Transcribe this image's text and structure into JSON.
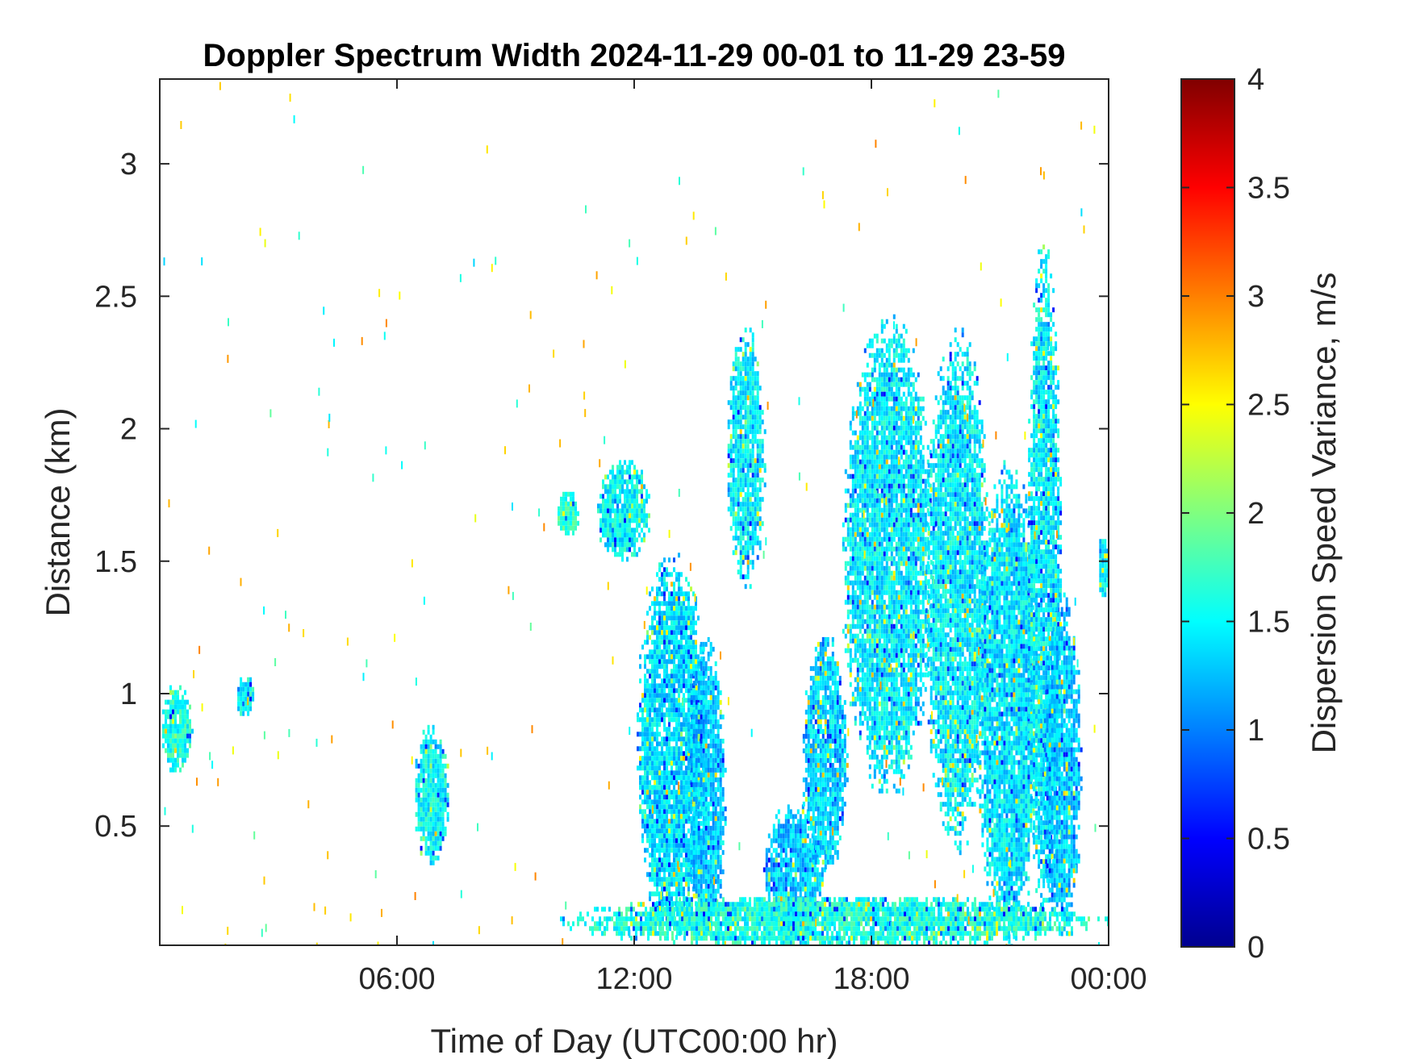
{
  "chart_data": {
    "type": "heatmap",
    "title": "Doppler Spectrum Width 2024-11-29 00-01 to 11-29 23-59",
    "xlabel": "Time of Day (UTC00:00 hr)",
    "ylabel": "Distance (km)",
    "colorbar_label": "Dispersion Speed Variance, m/s",
    "x_range_hours": [
      0,
      24
    ],
    "ylim_km": [
      0.05,
      3.32
    ],
    "clim": [
      0,
      4
    ],
    "x_ticks": [
      {
        "value": 6,
        "label": "06:00"
      },
      {
        "value": 12,
        "label": "12:00"
      },
      {
        "value": 18,
        "label": "18:00"
      },
      {
        "value": 24,
        "label": "00:00"
      }
    ],
    "y_ticks": [
      {
        "value": 0.5,
        "label": "0.5"
      },
      {
        "value": 1,
        "label": "1"
      },
      {
        "value": 1.5,
        "label": "1.5"
      },
      {
        "value": 2,
        "label": "2"
      },
      {
        "value": 2.5,
        "label": "2.5"
      },
      {
        "value": 3,
        "label": "3"
      }
    ],
    "colorbar_ticks": [
      {
        "value": 0,
        "label": "0"
      },
      {
        "value": 0.5,
        "label": "0.5"
      },
      {
        "value": 1,
        "label": "1"
      },
      {
        "value": 1.5,
        "label": "1.5"
      },
      {
        "value": 2,
        "label": "2"
      },
      {
        "value": 2.5,
        "label": "2.5"
      },
      {
        "value": 3,
        "label": "3"
      },
      {
        "value": 3.5,
        "label": "3.5"
      },
      {
        "value": 4,
        "label": "4"
      }
    ],
    "colormap": "jet",
    "regions": [
      {
        "t0": 0.0,
        "t1": 0.8,
        "h0": 0.7,
        "h1": 1.05,
        "v": 1.6
      },
      {
        "t0": 1.9,
        "t1": 2.4,
        "h0": 0.92,
        "h1": 1.08,
        "v": 1.5
      },
      {
        "t0": 6.4,
        "t1": 7.3,
        "h0": 0.35,
        "h1": 0.9,
        "v": 1.5
      },
      {
        "t0": 10.0,
        "t1": 10.6,
        "h0": 1.6,
        "h1": 1.78,
        "v": 1.7
      },
      {
        "t0": 11.0,
        "t1": 12.4,
        "h0": 1.5,
        "h1": 1.9,
        "v": 1.5
      },
      {
        "t0": 12.0,
        "t1": 13.9,
        "h0": 0.05,
        "h1": 1.55,
        "v": 1.4
      },
      {
        "t0": 13.3,
        "t1": 14.3,
        "h0": 0.05,
        "h1": 1.25,
        "v": 1.3
      },
      {
        "t0": 14.3,
        "t1": 15.3,
        "h0": 1.4,
        "h1": 2.4,
        "v": 1.45
      },
      {
        "t0": 15.2,
        "t1": 16.8,
        "h0": 0.05,
        "h1": 0.6,
        "v": 1.3
      },
      {
        "t0": 16.2,
        "t1": 17.4,
        "h0": 0.3,
        "h1": 1.25,
        "v": 1.35
      },
      {
        "t0": 17.2,
        "t1": 19.6,
        "h0": 0.6,
        "h1": 2.45,
        "v": 1.45
      },
      {
        "t0": 19.3,
        "t1": 21.0,
        "h0": 0.4,
        "h1": 2.4,
        "v": 1.45
      },
      {
        "t0": 20.6,
        "t1": 22.3,
        "h0": 0.05,
        "h1": 1.9,
        "v": 1.4
      },
      {
        "t0": 21.9,
        "t1": 22.8,
        "h0": 0.1,
        "h1": 2.75,
        "v": 1.45
      },
      {
        "t0": 22.3,
        "t1": 23.3,
        "h0": 0.05,
        "h1": 1.4,
        "v": 1.3
      },
      {
        "t0": 23.7,
        "t1": 24.0,
        "h0": 1.35,
        "h1": 1.62,
        "v": 1.4
      },
      {
        "t0": 10.0,
        "t1": 24.0,
        "h0": 0.05,
        "h1": 0.25,
        "v": 1.6
      }
    ]
  }
}
